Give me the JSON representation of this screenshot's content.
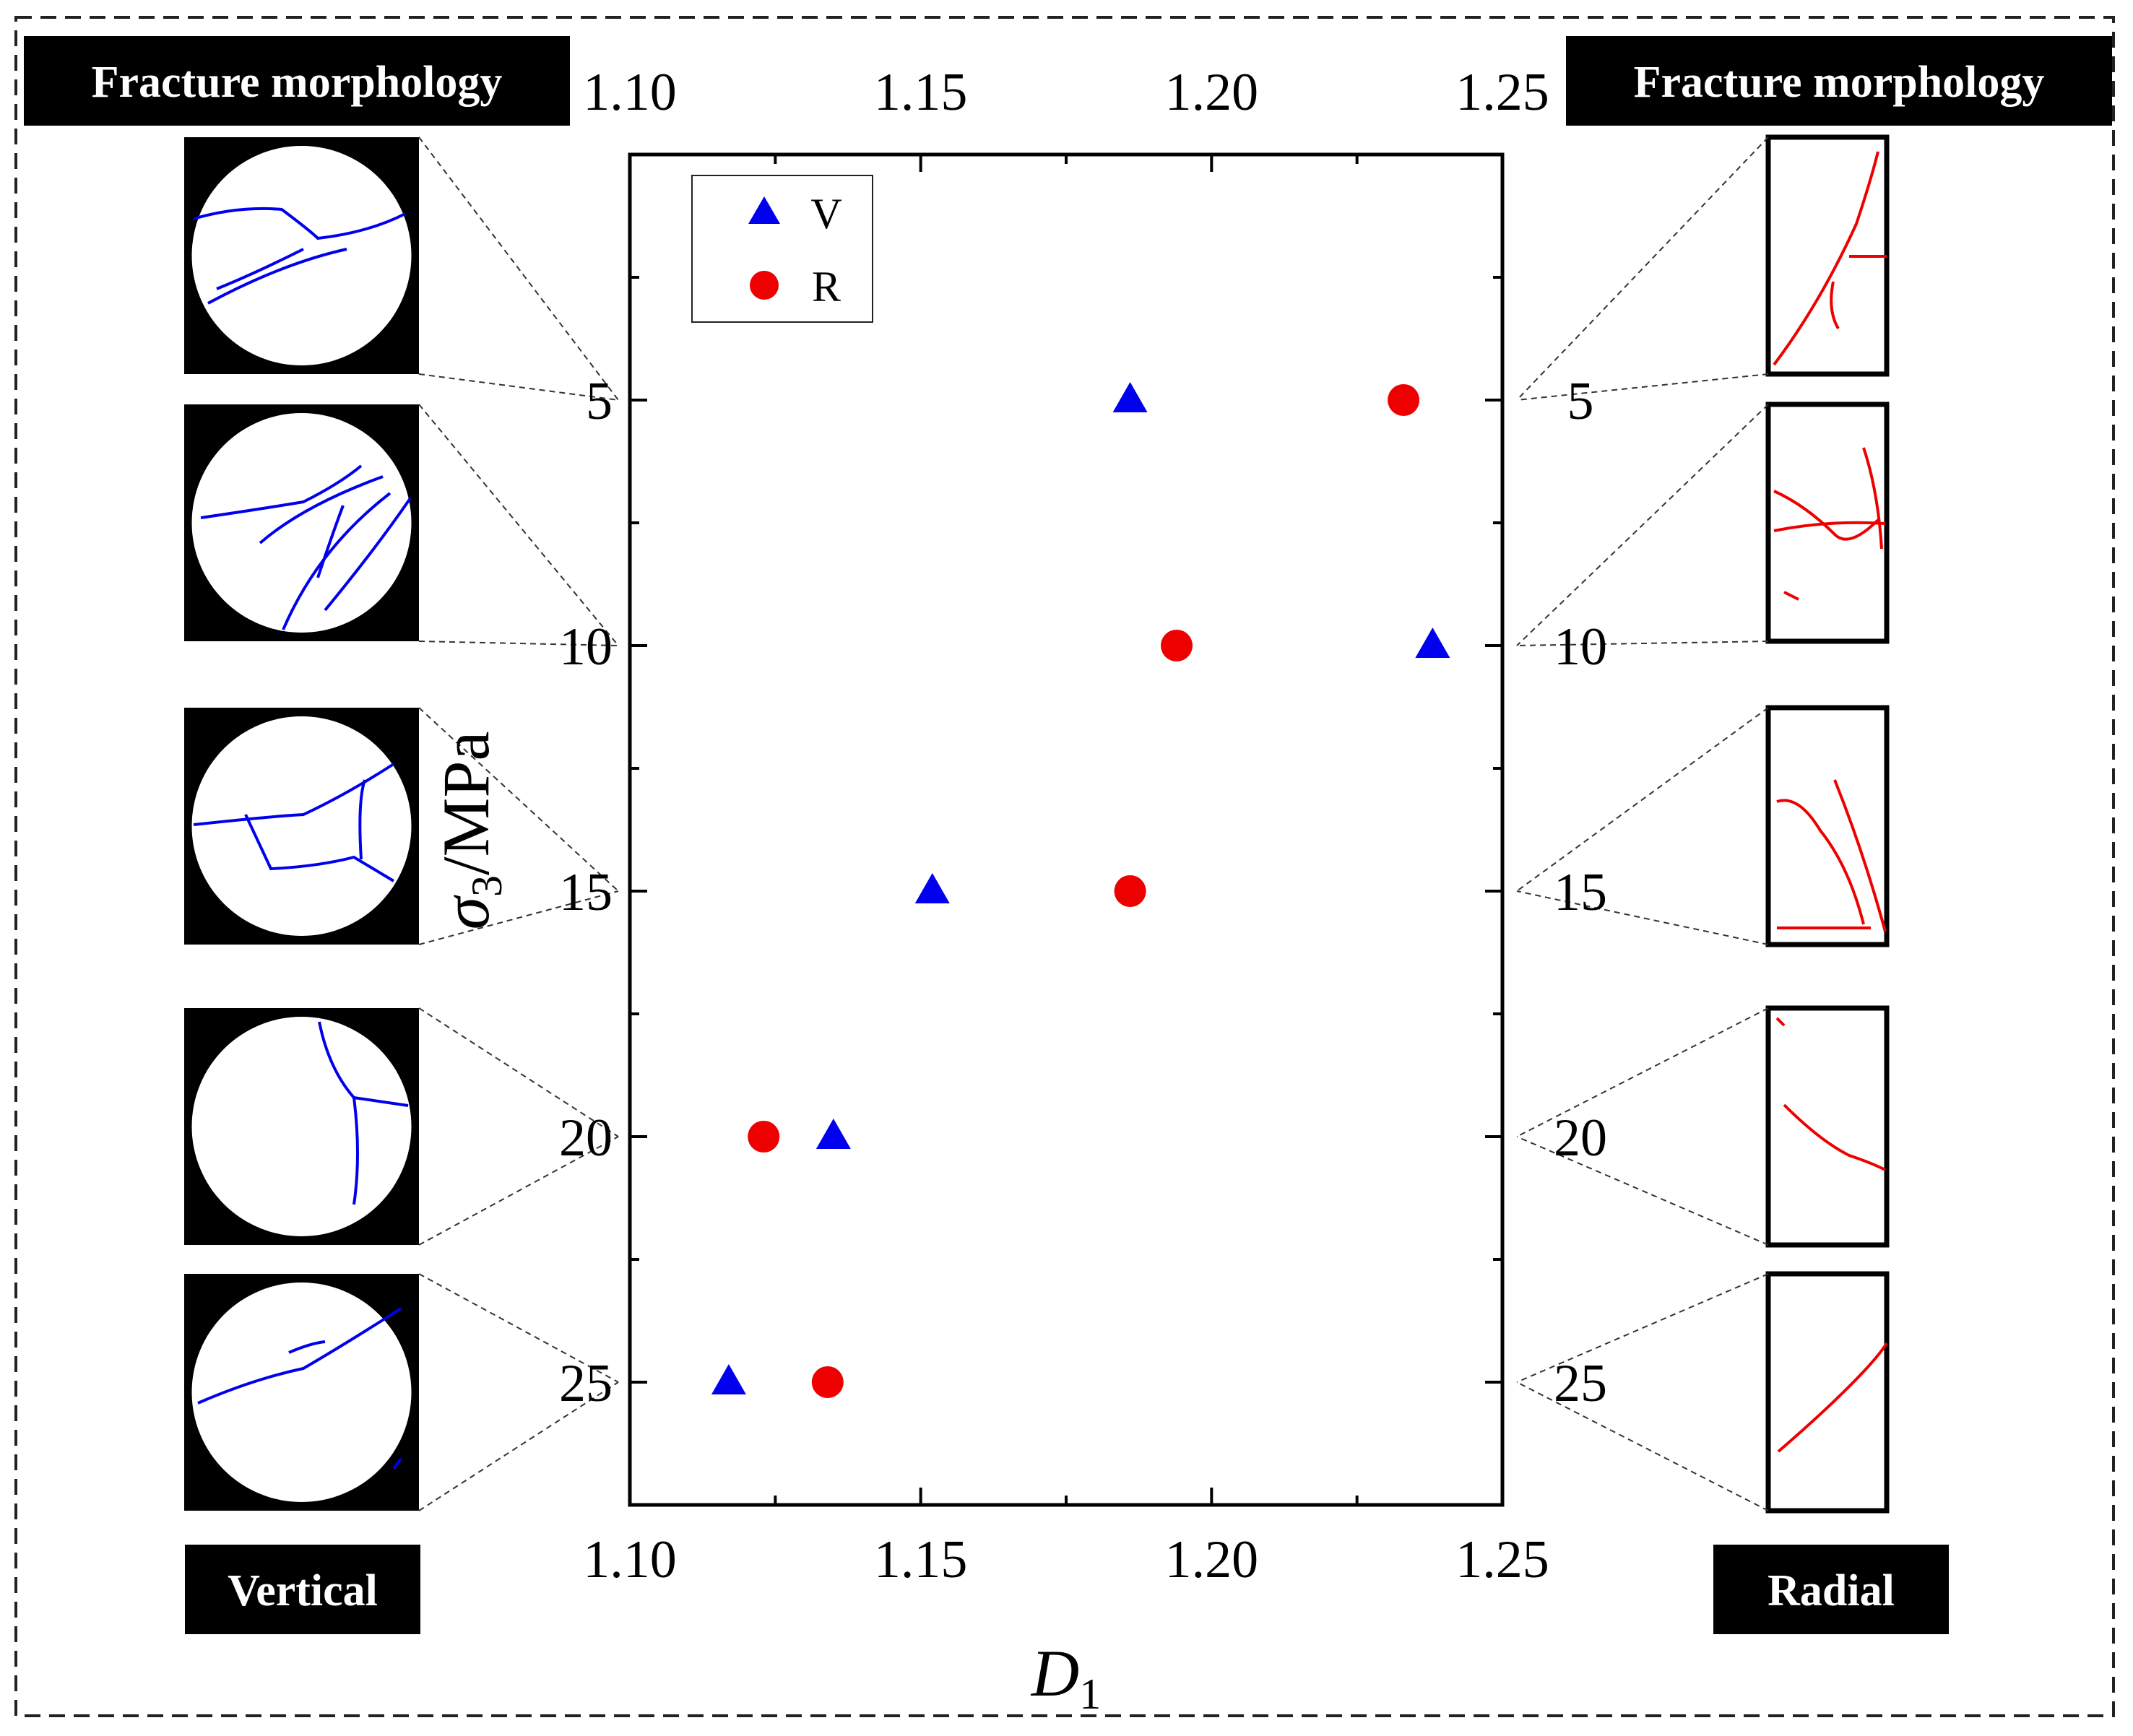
{
  "headers": {
    "left_title": "Fracture morphology",
    "right_title": "Fracture morphology",
    "left_footer": "Vertical",
    "right_footer": "Radial"
  },
  "colors": {
    "vertical": "#0000ee",
    "radial": "#ee0000",
    "axis": "#000000",
    "panel_bg": "#000000",
    "specimen_bg": "#ffffff",
    "guide": "#333333"
  },
  "icons": {
    "vertical_specimen": "circle-crack-icon",
    "radial_specimen": "rectangle-crack-icon",
    "vertical_marker": "triangle-icon",
    "radial_marker": "circle-icon"
  },
  "chart_data": {
    "type": "scatter",
    "title": "",
    "xlabel": "D",
    "xlabel_sub": "1",
    "ylabel_sigma": "σ",
    "ylabel_sub": "3",
    "ylabel_unit": "/MPa",
    "xlim": [
      1.1,
      1.25
    ],
    "ylim": [
      0,
      27.5
    ],
    "y_inverted": true,
    "x_ticks": [
      "1.10",
      "1.15",
      "1.20",
      "1.25"
    ],
    "x_top_ticks": [
      "1.10",
      "1.15",
      "1.20",
      "1.25"
    ],
    "y_ticks": [
      "5",
      "10",
      "15",
      "20",
      "25"
    ],
    "y_right_ticks": [
      "5",
      "10",
      "15",
      "20",
      "25"
    ],
    "legend_position": "top-left",
    "series": [
      {
        "name": "V",
        "marker": "triangle",
        "points": [
          {
            "x": 1.186,
            "y": 5
          },
          {
            "x": 1.238,
            "y": 10
          },
          {
            "x": 1.152,
            "y": 15
          },
          {
            "x": 1.135,
            "y": 20
          },
          {
            "x": 1.117,
            "y": 25
          }
        ]
      },
      {
        "name": "R",
        "marker": "circle",
        "points": [
          {
            "x": 1.233,
            "y": 5
          },
          {
            "x": 1.194,
            "y": 10
          },
          {
            "x": 1.186,
            "y": 15
          },
          {
            "x": 1.123,
            "y": 20
          },
          {
            "x": 1.134,
            "y": 25
          }
        ]
      }
    ]
  }
}
